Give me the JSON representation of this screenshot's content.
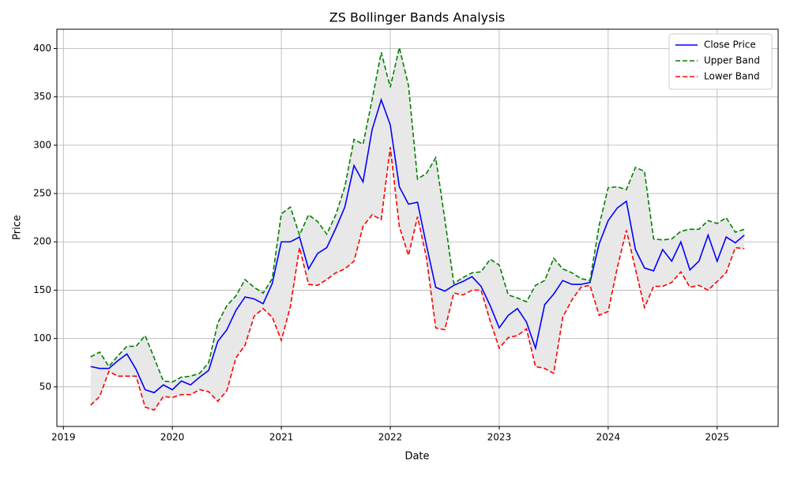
{
  "chart_data": {
    "type": "line",
    "title": "ZS Bollinger Bands Analysis",
    "x_label": "Date",
    "y_label": "Price",
    "x": [
      2019.25,
      2019.333,
      2019.417,
      2019.5,
      2019.583,
      2019.667,
      2019.75,
      2019.833,
      2019.917,
      2020.0,
      2020.083,
      2020.167,
      2020.25,
      2020.333,
      2020.417,
      2020.5,
      2020.583,
      2020.667,
      2020.75,
      2020.833,
      2020.917,
      2021.0,
      2021.083,
      2021.167,
      2021.25,
      2021.333,
      2021.417,
      2021.5,
      2021.583,
      2021.667,
      2021.75,
      2021.833,
      2021.917,
      2022.0,
      2022.083,
      2022.167,
      2022.25,
      2022.333,
      2022.417,
      2022.5,
      2022.583,
      2022.667,
      2022.75,
      2022.833,
      2022.917,
      2023.0,
      2023.083,
      2023.167,
      2023.25,
      2023.333,
      2023.417,
      2023.5,
      2023.583,
      2023.667,
      2023.75,
      2023.833,
      2023.917,
      2024.0,
      2024.083,
      2024.167,
      2024.25,
      2024.333,
      2024.417,
      2024.5,
      2024.583,
      2024.667,
      2024.75,
      2024.833,
      2024.917,
      2025.0,
      2025.083,
      2025.167,
      2025.25
    ],
    "series": [
      {
        "name": "Close Price",
        "color": "#0000ff",
        "linestyle": "solid",
        "values": [
          71,
          69,
          69,
          77,
          84,
          68,
          47,
          44,
          52,
          47,
          56,
          52,
          60,
          67,
          97,
          109,
          129,
          143,
          141,
          136,
          157,
          200,
          200,
          205,
          172,
          188,
          194,
          214,
          236,
          279,
          262,
          316,
          347,
          321,
          257,
          239,
          241,
          196,
          153,
          149,
          155,
          159,
          164,
          154,
          134,
          111,
          124,
          131,
          117,
          90,
          135,
          146,
          160,
          156,
          156,
          158,
          198,
          222,
          235,
          242,
          192,
          173,
          170,
          192,
          180,
          200,
          171,
          180,
          207,
          180,
          205,
          199,
          207
        ]
      },
      {
        "name": "Upper Band",
        "color": "#008000",
        "linestyle": "dashed",
        "values": [
          81,
          86,
          71,
          82,
          92,
          92,
          103,
          80,
          56,
          55,
          60,
          61,
          64,
          75,
          116,
          134,
          144,
          161,
          153,
          147,
          162,
          229,
          236,
          207,
          228,
          221,
          208,
          228,
          257,
          306,
          301,
          347,
          396,
          360,
          401,
          362,
          265,
          271,
          287,
          224,
          157,
          163,
          168,
          169,
          182,
          176,
          145,
          142,
          138,
          155,
          160,
          183,
          172,
          168,
          162,
          160,
          217,
          256,
          257,
          254,
          277,
          273,
          203,
          202,
          203,
          211,
          213,
          213,
          222,
          219,
          225,
          210,
          213
        ]
      },
      {
        "name": "Lower Band",
        "color": "#ff0000",
        "linestyle": "dashed",
        "values": [
          31,
          40,
          66,
          61,
          61,
          61,
          29,
          26,
          40,
          39,
          42,
          42,
          47,
          45,
          35,
          46,
          80,
          93,
          123,
          131,
          122,
          98,
          133,
          194,
          156,
          155,
          161,
          168,
          172,
          180,
          216,
          228,
          223,
          298,
          216,
          186,
          226,
          183,
          111,
          109,
          147,
          145,
          150,
          150,
          118,
          90,
          101,
          103,
          110,
          71,
          69,
          64,
          122,
          140,
          153,
          155,
          124,
          128,
          173,
          212,
          172,
          132,
          154,
          154,
          158,
          169,
          153,
          155,
          150,
          159,
          168,
          194,
          193
        ]
      }
    ],
    "band_fill_color": "#e8e8e8",
    "xlim": [
      2018.94,
      2025.56
    ],
    "xticks": [
      2019,
      2020,
      2021,
      2022,
      2023,
      2024,
      2025
    ],
    "ylim": [
      9,
      420
    ],
    "yticks": [
      50,
      100,
      150,
      200,
      250,
      300,
      350,
      400
    ],
    "grid": true,
    "legend": "upper right"
  }
}
